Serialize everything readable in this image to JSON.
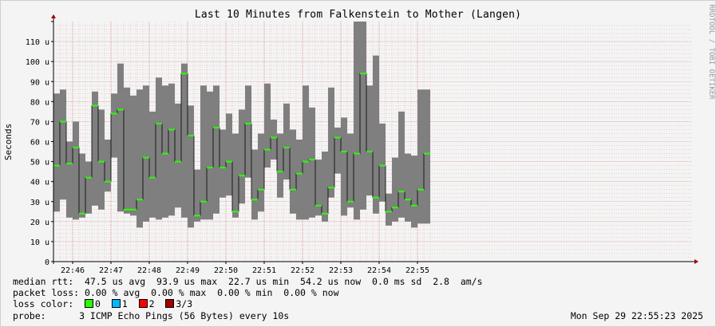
{
  "title": "Last 10 Minutes from Falkenstein to Mother (Langen)",
  "side_label": "RRDTOOL / TOBI OETIKER",
  "legend": {
    "median": {
      "label": "median rtt:",
      "text": "  47.5 us avg  93.9 us max  22.7 us min  54.2 us now  0.0 ms sd  2.8  am/s"
    },
    "loss": {
      "label": "packet loss:",
      "text": " 0.00 % avg  0.00 % max  0.00 % min  0.00 % now"
    },
    "loss_color": {
      "label": "loss color:",
      "items": [
        {
          "label": "0",
          "color": "#26ff00"
        },
        {
          "label": "1",
          "color": "#00b8ff"
        },
        {
          "label": "2",
          "color": "#ff0000"
        },
        {
          "label": "3/3",
          "color": "#a10000"
        }
      ]
    },
    "probe": {
      "label": "probe:",
      "text": "      3 ICMP Echo Pings (56 Bytes) every 10s"
    }
  },
  "timestamp": "Mon Sep 29 22:55:23 2025",
  "colors": {
    "smoke": "#7f7f7f",
    "median": "#26ff00",
    "grid_minor": "#e8a0a0",
    "grid_major": "#c8a0a0",
    "arrow": "#a00000"
  },
  "chart_data": {
    "type": "area",
    "title": "Last 10 Minutes from Falkenstein to Mother (Langen)",
    "ylabel": "Seconds",
    "ylim": [
      0,
      120
    ],
    "y_ticks": [
      0,
      10,
      20,
      30,
      40,
      50,
      60,
      70,
      80,
      90,
      100,
      110
    ],
    "y_tick_labels": [
      "0",
      "10 u",
      "20 u",
      "30 u",
      "40 u",
      "50 u",
      "60 u",
      "70 u",
      "80 u",
      "90 u",
      "100 u",
      "110 u"
    ],
    "x_ticks": [
      "22:46",
      "22:47",
      "22:48",
      "22:49",
      "22:50",
      "22:51",
      "22:52",
      "22:53",
      "22:54",
      "22:55"
    ],
    "samples_per_minute": 6,
    "first_tick_offset_samples": 3,
    "series": [
      {
        "name": "median rtt",
        "values": [
          48,
          70,
          49,
          57,
          24,
          42,
          78,
          50,
          40,
          74,
          76,
          26,
          26,
          31,
          52,
          42,
          69,
          54,
          66,
          50,
          94,
          63,
          23,
          30,
          47,
          67,
          47,
          50,
          25,
          43,
          69,
          31,
          36,
          56,
          62,
          45,
          57,
          36,
          44,
          50,
          51,
          28,
          24,
          37,
          62,
          55,
          30,
          54,
          94,
          55,
          32,
          48,
          25,
          27,
          35,
          31,
          28,
          36,
          54
        ]
      },
      {
        "name": "max rtt",
        "values": [
          84,
          86,
          60,
          70,
          54,
          50,
          85,
          76,
          61,
          84,
          99,
          87,
          83,
          86,
          88,
          75,
          92,
          88,
          89,
          79,
          99,
          78,
          46,
          88,
          85,
          88,
          66,
          74,
          64,
          76,
          88,
          56,
          64,
          89,
          71,
          64,
          79,
          66,
          61,
          88,
          77,
          51,
          55,
          87,
          67,
          72,
          64,
          120,
          120,
          88,
          103,
          69,
          34,
          52,
          75,
          54,
          53,
          86,
          86
        ]
      },
      {
        "name": "min rtt",
        "values": [
          25,
          31,
          22,
          21,
          22,
          24,
          28,
          26,
          35,
          52,
          25,
          24,
          23,
          17,
          20,
          22,
          21,
          22,
          23,
          27,
          22,
          17,
          20,
          21,
          21,
          24,
          32,
          33,
          22,
          29,
          42,
          21,
          25,
          47,
          51,
          32,
          41,
          24,
          21,
          21,
          22,
          23,
          20,
          32,
          44,
          23,
          27,
          21,
          26,
          33,
          24,
          30,
          18,
          20,
          22,
          20,
          17,
          19,
          19
        ]
      }
    ],
    "grid": true
  }
}
